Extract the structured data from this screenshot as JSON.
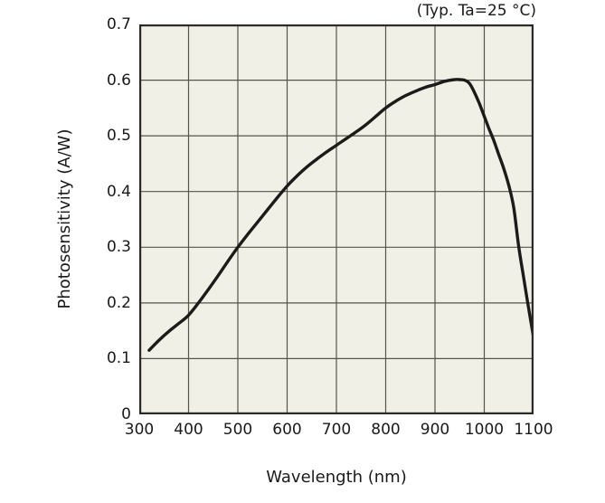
{
  "annotation": "(Typ. Ta=25 °C)",
  "y_axis": {
    "title": "Photosensitivity (A/W)",
    "tick_labels": [
      "0.7",
      "0.6",
      "0.5",
      "0.4",
      "0.3",
      "0.2",
      "0.1",
      "0"
    ]
  },
  "x_axis": {
    "title": "Wavelength (nm)",
    "tick_labels": [
      "300",
      "400",
      "500",
      "600",
      "700",
      "800",
      "900",
      "1000",
      "1100"
    ]
  },
  "colors": {
    "page_background": "#ffffff",
    "plot_background": "#f1f0e7",
    "grid": "#55544d",
    "border": "#2b2a26",
    "curve": "#1b1b19",
    "text": "#1a1a1a"
  },
  "chart_data": {
    "type": "line",
    "title": "(Typ. Ta=25 °C)",
    "xlabel": "Wavelength (nm)",
    "ylabel": "Photosensitivity (A/W)",
    "xlim": [
      300,
      1100
    ],
    "ylim": [
      0,
      0.7
    ],
    "x_ticks": [
      300,
      400,
      500,
      600,
      700,
      800,
      900,
      1000,
      1100
    ],
    "y_ticks": [
      0,
      0.1,
      0.2,
      0.3,
      0.4,
      0.5,
      0.6,
      0.7
    ],
    "grid": true,
    "legend": false,
    "series": [
      {
        "name": "Photosensitivity",
        "color": "#1b1b19",
        "points": [
          [
            320,
            0.115
          ],
          [
            340,
            0.133
          ],
          [
            360,
            0.149
          ],
          [
            380,
            0.163
          ],
          [
            400,
            0.178
          ],
          [
            420,
            0.2
          ],
          [
            440,
            0.224
          ],
          [
            460,
            0.249
          ],
          [
            480,
            0.275
          ],
          [
            500,
            0.3
          ],
          [
            520,
            0.323
          ],
          [
            540,
            0.345
          ],
          [
            560,
            0.367
          ],
          [
            580,
            0.389
          ],
          [
            600,
            0.41
          ],
          [
            620,
            0.428
          ],
          [
            640,
            0.444
          ],
          [
            660,
            0.458
          ],
          [
            680,
            0.471
          ],
          [
            700,
            0.483
          ],
          [
            720,
            0.495
          ],
          [
            740,
            0.507
          ],
          [
            760,
            0.52
          ],
          [
            780,
            0.535
          ],
          [
            800,
            0.55
          ],
          [
            820,
            0.562
          ],
          [
            840,
            0.572
          ],
          [
            860,
            0.58
          ],
          [
            880,
            0.587
          ],
          [
            900,
            0.592
          ],
          [
            920,
            0.598
          ],
          [
            940,
            0.601
          ],
          [
            950,
            0.601
          ],
          [
            960,
            0.6
          ],
          [
            970,
            0.594
          ],
          [
            980,
            0.578
          ],
          [
            990,
            0.558
          ],
          [
            1000,
            0.535
          ],
          [
            1010,
            0.512
          ],
          [
            1020,
            0.49
          ],
          [
            1030,
            0.465
          ],
          [
            1040,
            0.44
          ],
          [
            1050,
            0.41
          ],
          [
            1060,
            0.37
          ],
          [
            1070,
            0.3
          ],
          [
            1080,
            0.245
          ],
          [
            1090,
            0.19
          ],
          [
            1100,
            0.138
          ]
        ]
      }
    ]
  }
}
